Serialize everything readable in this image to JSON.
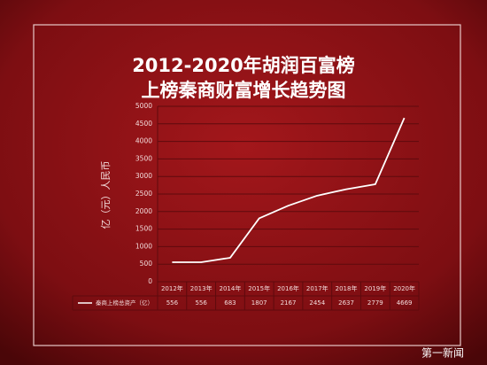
{
  "chart_data": {
    "type": "line",
    "title": "2012-2020年胡润百富榜",
    "subtitle": "上榜秦商财富增长趋势图",
    "y_label": "亿（元）人民币",
    "categories": [
      "2012年",
      "2013年",
      "2014年",
      "2015年",
      "2016年",
      "2017年",
      "2018年",
      "2019年",
      "2020年"
    ],
    "series": [
      {
        "name": "秦商上榜总资产（亿）",
        "color": "#ffffff",
        "values": [
          556,
          556,
          683,
          1807,
          2167,
          2454,
          2637,
          2779,
          4669
        ]
      }
    ],
    "ylim": [
      0,
      5000
    ],
    "yticks": [
      0,
      500,
      1000,
      1500,
      2000,
      2500,
      3000,
      3500,
      4000,
      4500,
      5000
    ],
    "grid": true,
    "data_table": true,
    "watermark": "第一新闻"
  }
}
